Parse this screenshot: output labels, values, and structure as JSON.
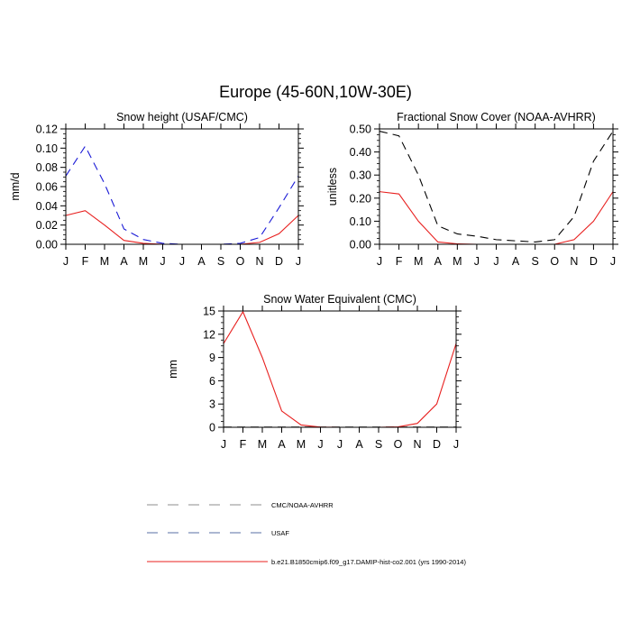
{
  "figure": {
    "title": "Europe (45-60N,10W-30E)"
  },
  "colors": {
    "model": "#e8201f",
    "usaf": "#1a1ad6",
    "obs": "#000000",
    "legend_gray": "#8c8c8c",
    "legend_blue": "#5a6fa6",
    "legend_red": "#e8201f"
  },
  "chart_data": [
    {
      "id": "snow-height",
      "type": "line",
      "title": "Snow height (USAF/CMC)",
      "xlabel": "",
      "ylabel": "mm/d",
      "x": [
        "J",
        "F",
        "M",
        "A",
        "M",
        "J",
        "J",
        "A",
        "S",
        "O",
        "N",
        "D",
        "J"
      ],
      "ylim": [
        0,
        0.12
      ],
      "yticks": [
        0.0,
        0.02,
        0.04,
        0.06,
        0.08,
        0.1,
        0.12
      ],
      "ytick_labels": [
        "0.00",
        "0.02",
        "0.04",
        "0.06",
        "0.08",
        "0.10",
        "0.12"
      ],
      "series": [
        {
          "key": "usaf",
          "style": "dashed",
          "values": [
            0.071,
            0.102,
            0.063,
            0.016,
            0.005,
            0.001,
            0.0,
            0.0,
            0.0,
            0.001,
            0.007,
            0.038,
            0.071
          ]
        },
        {
          "key": "model",
          "style": "solid",
          "values": [
            0.03,
            0.035,
            0.02,
            0.004,
            0.001,
            0.0,
            0.0,
            0.0,
            0.0,
            0.0,
            0.002,
            0.011,
            0.03
          ]
        }
      ]
    },
    {
      "id": "fractional-snow-cover",
      "type": "line",
      "title": "Fractional Snow Cover (NOAA-AVHRR)",
      "xlabel": "",
      "ylabel": "unitless",
      "x": [
        "J",
        "F",
        "M",
        "A",
        "M",
        "J",
        "J",
        "A",
        "S",
        "O",
        "N",
        "D",
        "J"
      ],
      "ylim": [
        0,
        0.5
      ],
      "yticks": [
        0.0,
        0.1,
        0.2,
        0.3,
        0.4,
        0.5
      ],
      "ytick_labels": [
        "0.00",
        "0.10",
        "0.20",
        "0.30",
        "0.40",
        "0.50"
      ],
      "series": [
        {
          "key": "obs",
          "style": "dashed",
          "values": [
            0.49,
            0.47,
            0.3,
            0.08,
            0.045,
            0.035,
            0.02,
            0.015,
            0.01,
            0.02,
            0.12,
            0.36,
            0.49
          ]
        },
        {
          "key": "model",
          "style": "solid",
          "values": [
            0.228,
            0.218,
            0.1,
            0.01,
            0.002,
            0.0,
            0.0,
            0.0,
            0.0,
            0.0,
            0.02,
            0.1,
            0.228
          ]
        }
      ]
    },
    {
      "id": "snow-water-equivalent",
      "type": "line",
      "title": "Snow Water Equivalent (CMC)",
      "xlabel": "",
      "ylabel": "mm",
      "x": [
        "J",
        "F",
        "M",
        "A",
        "M",
        "J",
        "J",
        "A",
        "S",
        "O",
        "N",
        "D",
        "J"
      ],
      "ylim": [
        0,
        15
      ],
      "yticks": [
        0,
        3,
        6,
        9,
        12,
        15
      ],
      "ytick_labels": [
        "0",
        "3",
        "6",
        "9",
        "12",
        "15"
      ],
      "series": [
        {
          "key": "obs",
          "style": "dashed",
          "values": [
            0.02,
            0.02,
            0.02,
            0.02,
            0.02,
            0.02,
            0.02,
            0.02,
            0.02,
            0.02,
            0.02,
            0.02,
            0.02
          ]
        },
        {
          "key": "model",
          "style": "solid",
          "values": [
            10.8,
            14.9,
            9.0,
            2.1,
            0.3,
            0.02,
            0.0,
            0.0,
            0.0,
            0.05,
            0.5,
            3.0,
            10.8
          ]
        }
      ]
    }
  ],
  "legend": [
    {
      "label": "CMC/NOAA-AVHRR",
      "style": "dashed",
      "color_key": "legend_gray"
    },
    {
      "label": "USAF",
      "style": "dashed",
      "color_key": "legend_blue"
    },
    {
      "label": "b.e21.B1850cmip6.f09_g17.DAMIP-hist-co2.001 (yrs 1990-2014)",
      "style": "solid",
      "color_key": "legend_red"
    }
  ]
}
